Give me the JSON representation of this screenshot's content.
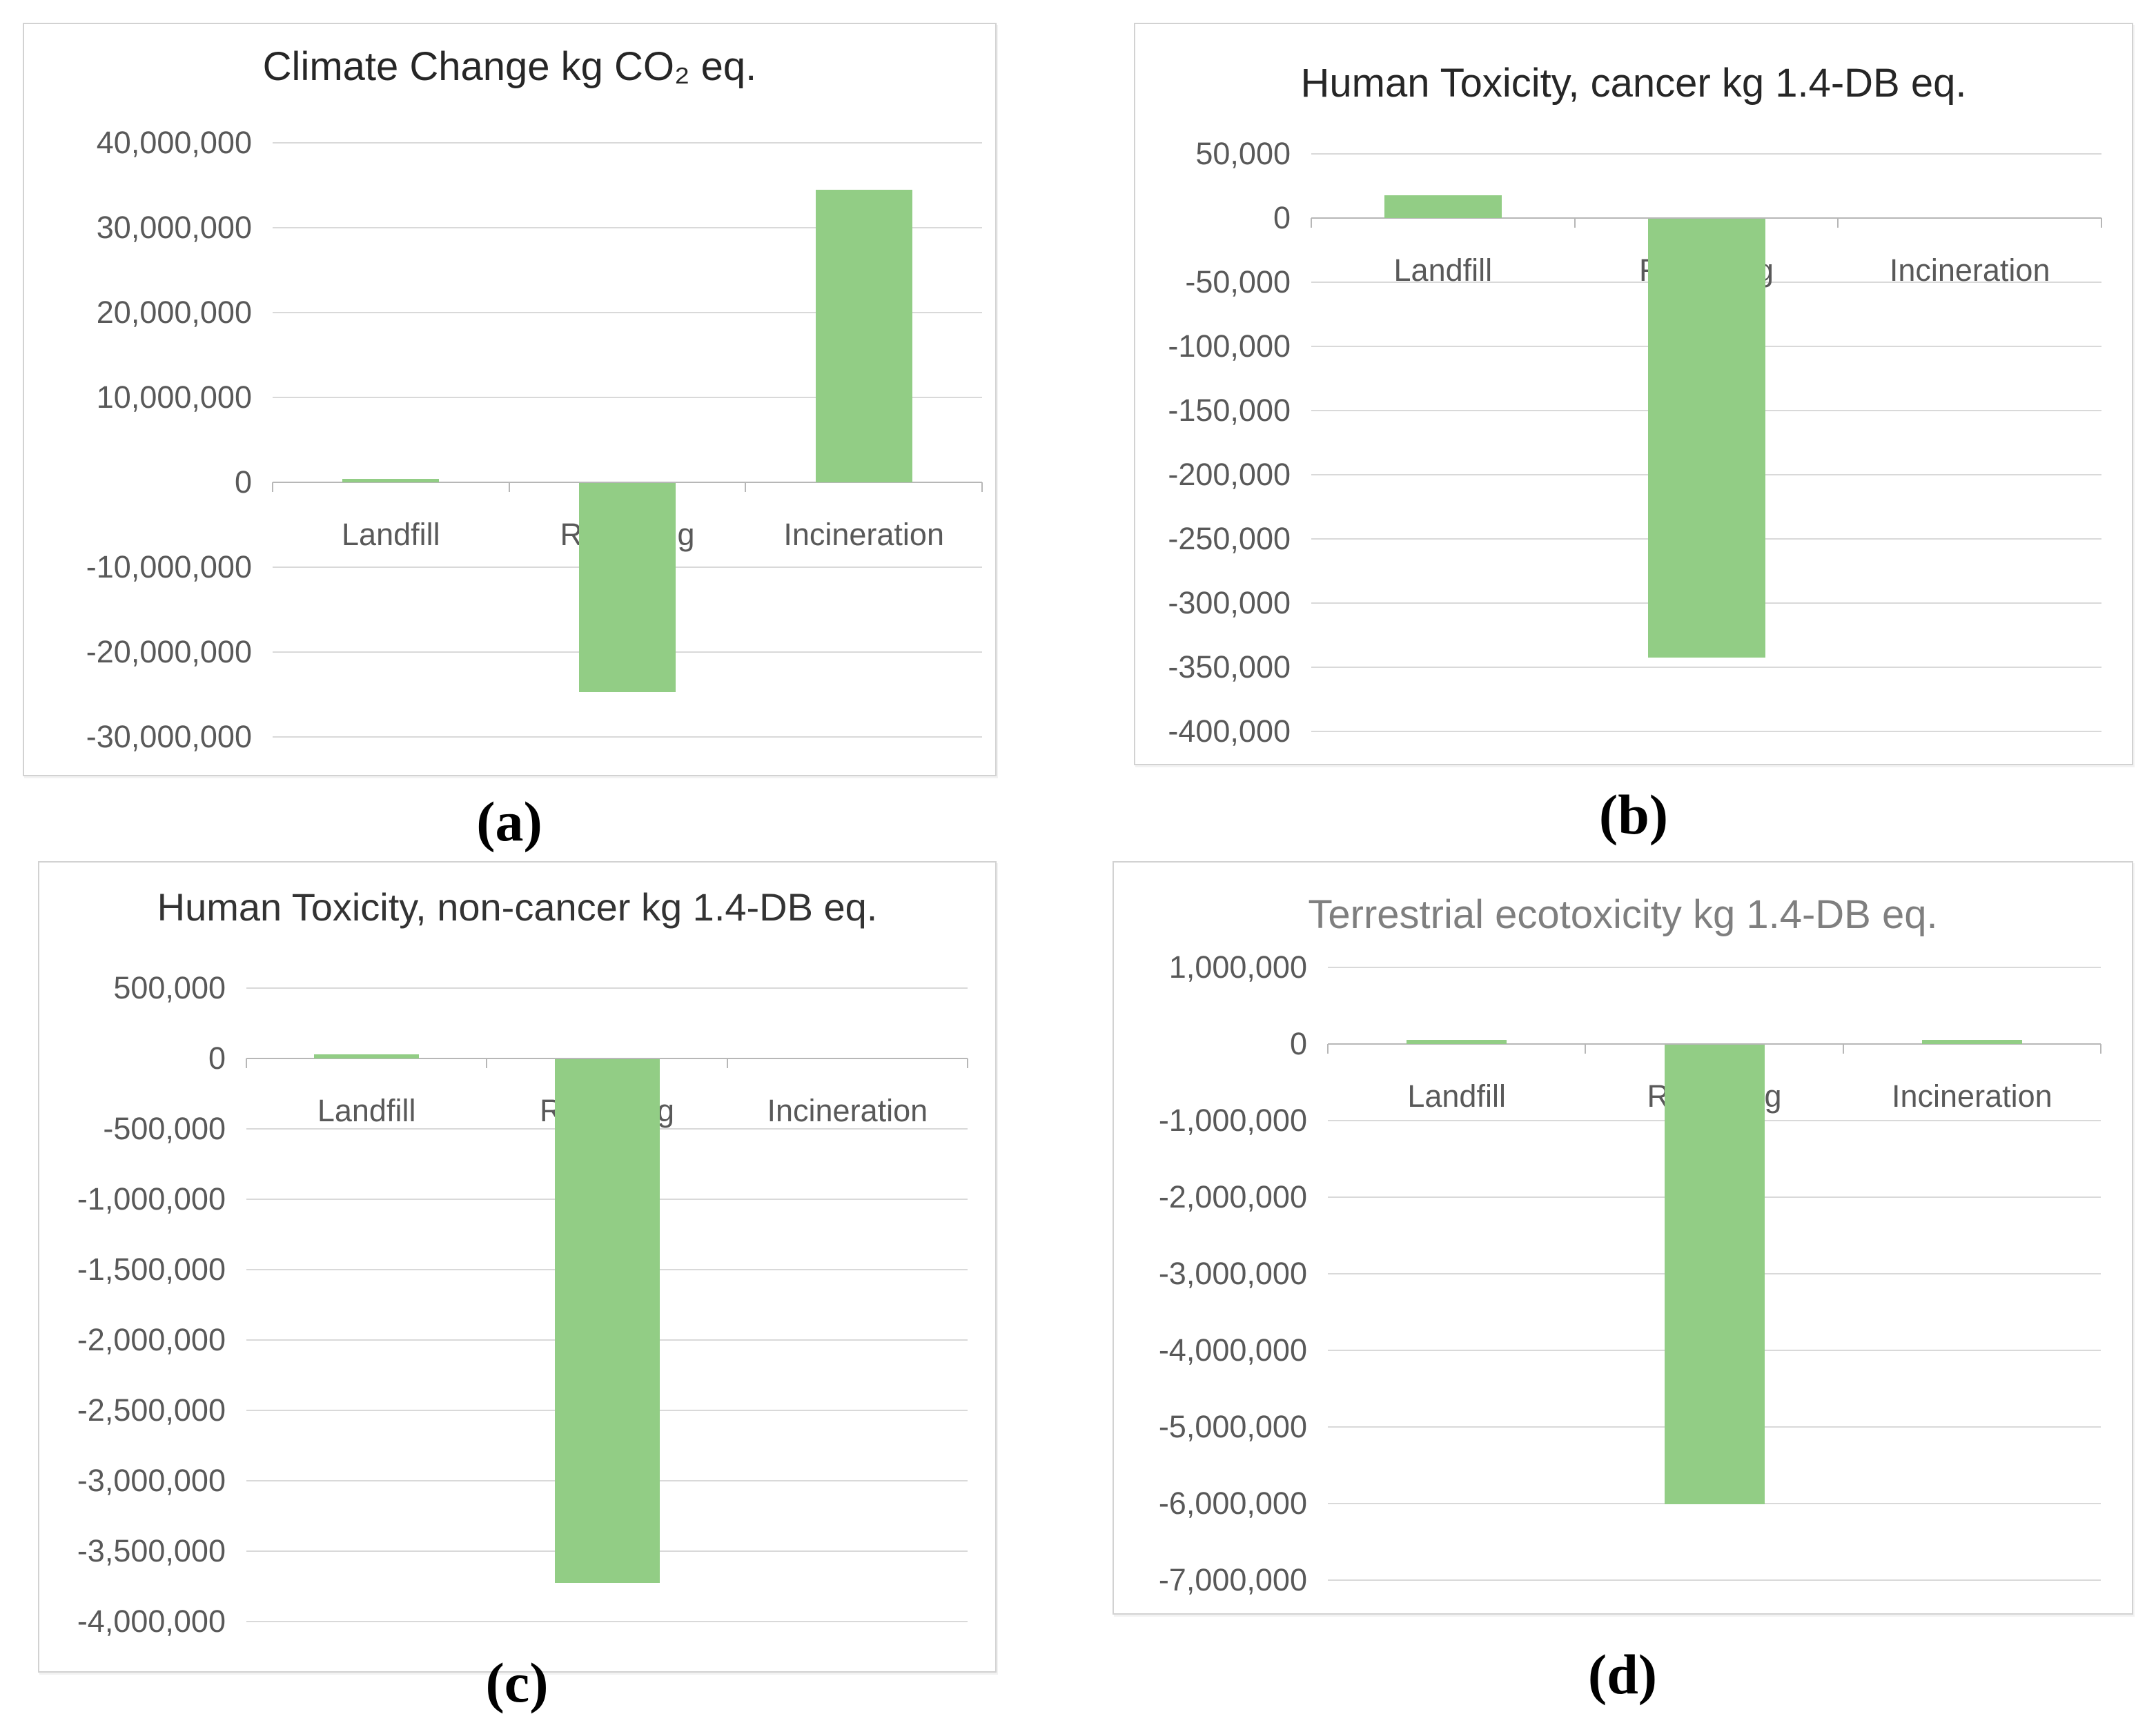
{
  "colors": {
    "bar_green": "#92cd85",
    "gridline": "#d9d9d9",
    "axis_line": "#b7b7b7",
    "tick_label": "#595959",
    "panel_border": "#d2d2d2"
  },
  "chart_data": [
    {
      "id": "a",
      "panel_label": "(a)",
      "type": "bar",
      "title": "Climate Change kg CO₂  eq.",
      "title_color": "#262626",
      "categories": [
        "Landfill",
        "Recycling",
        "Incineration"
      ],
      "values": [
        400000,
        -24600000,
        34500000
      ],
      "ylim": [
        -30000000,
        40000000
      ],
      "y_step": 10000000,
      "grid": true,
      "legend": "none",
      "ylabel": "",
      "xlabel": ""
    },
    {
      "id": "b",
      "panel_label": "(b)",
      "type": "bar",
      "title": "Human Toxicity, cancer kg 1.4-DB eq.",
      "title_color": "#262626",
      "categories": [
        "Landfill",
        "Recycling",
        "Incineration"
      ],
      "values": [
        18000,
        -342000,
        0
      ],
      "ylim": [
        -400000,
        50000
      ],
      "y_step": 50000,
      "grid": true,
      "legend": "none",
      "ylabel": "",
      "xlabel": ""
    },
    {
      "id": "c",
      "panel_label": "(c)",
      "type": "bar",
      "title": "Human Toxicity, non-cancer kg 1.4-DB eq.",
      "title_color": "#333333",
      "categories": [
        "Landfill",
        "Recycling",
        "Incineration"
      ],
      "values": [
        30000,
        -3720000,
        0
      ],
      "ylim": [
        -4000000,
        500000
      ],
      "y_step": 500000,
      "grid": true,
      "legend": "none",
      "ylabel": "",
      "xlabel": ""
    },
    {
      "id": "d",
      "panel_label": "(d)",
      "type": "bar",
      "title": "Terrestrial ecotoxicity kg 1.4-DB eq.",
      "title_color": "#7f7f7f",
      "categories": [
        "Landfill",
        "Recycling",
        "Incineration"
      ],
      "values": [
        50000,
        -6000000,
        50000
      ],
      "ylim": [
        -7000000,
        1000000
      ],
      "y_step": 1000000,
      "grid": true,
      "legend": "none",
      "ylabel": "",
      "xlabel": ""
    }
  ]
}
